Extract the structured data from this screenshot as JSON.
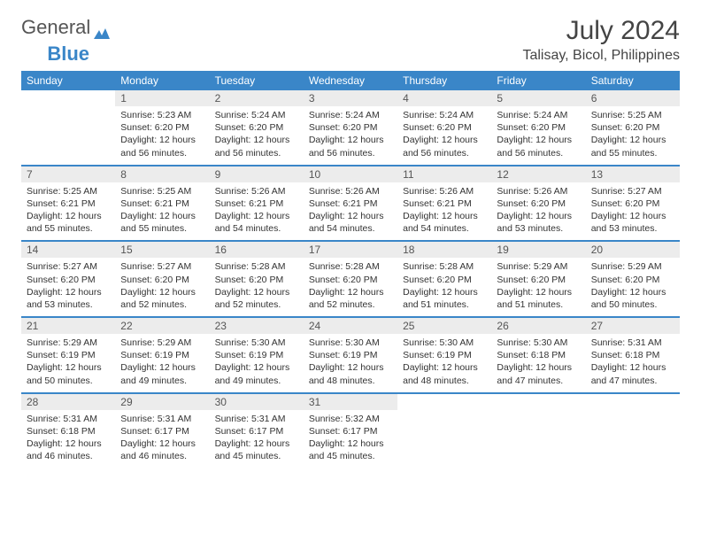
{
  "logo": {
    "text1": "General",
    "text2": "Blue"
  },
  "title": "July 2024",
  "location": "Talisay, Bicol, Philippines",
  "header_bg": "#3a86c8",
  "weekdays": [
    "Sunday",
    "Monday",
    "Tuesday",
    "Wednesday",
    "Thursday",
    "Friday",
    "Saturday"
  ],
  "weeks": [
    [
      {
        "n": "",
        "sr": "",
        "ss": "",
        "dl": ""
      },
      {
        "n": "1",
        "sr": "Sunrise: 5:23 AM",
        "ss": "Sunset: 6:20 PM",
        "dl": "Daylight: 12 hours and 56 minutes."
      },
      {
        "n": "2",
        "sr": "Sunrise: 5:24 AM",
        "ss": "Sunset: 6:20 PM",
        "dl": "Daylight: 12 hours and 56 minutes."
      },
      {
        "n": "3",
        "sr": "Sunrise: 5:24 AM",
        "ss": "Sunset: 6:20 PM",
        "dl": "Daylight: 12 hours and 56 minutes."
      },
      {
        "n": "4",
        "sr": "Sunrise: 5:24 AM",
        "ss": "Sunset: 6:20 PM",
        "dl": "Daylight: 12 hours and 56 minutes."
      },
      {
        "n": "5",
        "sr": "Sunrise: 5:24 AM",
        "ss": "Sunset: 6:20 PM",
        "dl": "Daylight: 12 hours and 56 minutes."
      },
      {
        "n": "6",
        "sr": "Sunrise: 5:25 AM",
        "ss": "Sunset: 6:20 PM",
        "dl": "Daylight: 12 hours and 55 minutes."
      }
    ],
    [
      {
        "n": "7",
        "sr": "Sunrise: 5:25 AM",
        "ss": "Sunset: 6:21 PM",
        "dl": "Daylight: 12 hours and 55 minutes."
      },
      {
        "n": "8",
        "sr": "Sunrise: 5:25 AM",
        "ss": "Sunset: 6:21 PM",
        "dl": "Daylight: 12 hours and 55 minutes."
      },
      {
        "n": "9",
        "sr": "Sunrise: 5:26 AM",
        "ss": "Sunset: 6:21 PM",
        "dl": "Daylight: 12 hours and 54 minutes."
      },
      {
        "n": "10",
        "sr": "Sunrise: 5:26 AM",
        "ss": "Sunset: 6:21 PM",
        "dl": "Daylight: 12 hours and 54 minutes."
      },
      {
        "n": "11",
        "sr": "Sunrise: 5:26 AM",
        "ss": "Sunset: 6:21 PM",
        "dl": "Daylight: 12 hours and 54 minutes."
      },
      {
        "n": "12",
        "sr": "Sunrise: 5:26 AM",
        "ss": "Sunset: 6:20 PM",
        "dl": "Daylight: 12 hours and 53 minutes."
      },
      {
        "n": "13",
        "sr": "Sunrise: 5:27 AM",
        "ss": "Sunset: 6:20 PM",
        "dl": "Daylight: 12 hours and 53 minutes."
      }
    ],
    [
      {
        "n": "14",
        "sr": "Sunrise: 5:27 AM",
        "ss": "Sunset: 6:20 PM",
        "dl": "Daylight: 12 hours and 53 minutes."
      },
      {
        "n": "15",
        "sr": "Sunrise: 5:27 AM",
        "ss": "Sunset: 6:20 PM",
        "dl": "Daylight: 12 hours and 52 minutes."
      },
      {
        "n": "16",
        "sr": "Sunrise: 5:28 AM",
        "ss": "Sunset: 6:20 PM",
        "dl": "Daylight: 12 hours and 52 minutes."
      },
      {
        "n": "17",
        "sr": "Sunrise: 5:28 AM",
        "ss": "Sunset: 6:20 PM",
        "dl": "Daylight: 12 hours and 52 minutes."
      },
      {
        "n": "18",
        "sr": "Sunrise: 5:28 AM",
        "ss": "Sunset: 6:20 PM",
        "dl": "Daylight: 12 hours and 51 minutes."
      },
      {
        "n": "19",
        "sr": "Sunrise: 5:29 AM",
        "ss": "Sunset: 6:20 PM",
        "dl": "Daylight: 12 hours and 51 minutes."
      },
      {
        "n": "20",
        "sr": "Sunrise: 5:29 AM",
        "ss": "Sunset: 6:20 PM",
        "dl": "Daylight: 12 hours and 50 minutes."
      }
    ],
    [
      {
        "n": "21",
        "sr": "Sunrise: 5:29 AM",
        "ss": "Sunset: 6:19 PM",
        "dl": "Daylight: 12 hours and 50 minutes."
      },
      {
        "n": "22",
        "sr": "Sunrise: 5:29 AM",
        "ss": "Sunset: 6:19 PM",
        "dl": "Daylight: 12 hours and 49 minutes."
      },
      {
        "n": "23",
        "sr": "Sunrise: 5:30 AM",
        "ss": "Sunset: 6:19 PM",
        "dl": "Daylight: 12 hours and 49 minutes."
      },
      {
        "n": "24",
        "sr": "Sunrise: 5:30 AM",
        "ss": "Sunset: 6:19 PM",
        "dl": "Daylight: 12 hours and 48 minutes."
      },
      {
        "n": "25",
        "sr": "Sunrise: 5:30 AM",
        "ss": "Sunset: 6:19 PM",
        "dl": "Daylight: 12 hours and 48 minutes."
      },
      {
        "n": "26",
        "sr": "Sunrise: 5:30 AM",
        "ss": "Sunset: 6:18 PM",
        "dl": "Daylight: 12 hours and 47 minutes."
      },
      {
        "n": "27",
        "sr": "Sunrise: 5:31 AM",
        "ss": "Sunset: 6:18 PM",
        "dl": "Daylight: 12 hours and 47 minutes."
      }
    ],
    [
      {
        "n": "28",
        "sr": "Sunrise: 5:31 AM",
        "ss": "Sunset: 6:18 PM",
        "dl": "Daylight: 12 hours and 46 minutes."
      },
      {
        "n": "29",
        "sr": "Sunrise: 5:31 AM",
        "ss": "Sunset: 6:17 PM",
        "dl": "Daylight: 12 hours and 46 minutes."
      },
      {
        "n": "30",
        "sr": "Sunrise: 5:31 AM",
        "ss": "Sunset: 6:17 PM",
        "dl": "Daylight: 12 hours and 45 minutes."
      },
      {
        "n": "31",
        "sr": "Sunrise: 5:32 AM",
        "ss": "Sunset: 6:17 PM",
        "dl": "Daylight: 12 hours and 45 minutes."
      },
      {
        "n": "",
        "sr": "",
        "ss": "",
        "dl": ""
      },
      {
        "n": "",
        "sr": "",
        "ss": "",
        "dl": ""
      },
      {
        "n": "",
        "sr": "",
        "ss": "",
        "dl": ""
      }
    ]
  ]
}
